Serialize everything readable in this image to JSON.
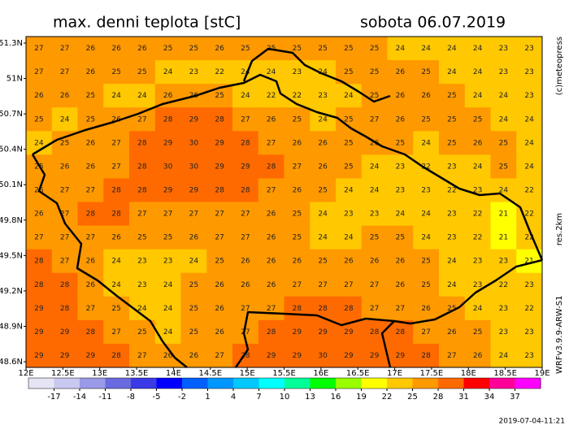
{
  "header": {
    "title": "max. denni teplota [stC]",
    "date": "sobota 06.07.2019"
  },
  "map": {
    "lat_labels": [
      "51.3N",
      "51N",
      "50.7N",
      "50.4N",
      "50.1N",
      "49.8N",
      "49.5N",
      "49.2N",
      "48.9N",
      "48.6N"
    ],
    "lon_labels": [
      "12E",
      "12.5E",
      "13E",
      "13.5E",
      "14E",
      "14.5E",
      "15E",
      "15.5E",
      "16E",
      "16.5E",
      "17E",
      "17.5E",
      "18E",
      "18.5E",
      "19E"
    ],
    "grid": [
      [
        27,
        27,
        26,
        26,
        26,
        25,
        25,
        26,
        25,
        25,
        25,
        25,
        25,
        25,
        24,
        24,
        24,
        24,
        23,
        23
      ],
      [
        27,
        27,
        26,
        25,
        25,
        24,
        23,
        22,
        24,
        24,
        23,
        24,
        25,
        25,
        26,
        25,
        24,
        24,
        23,
        23
      ],
      [
        26,
        26,
        25,
        24,
        24,
        26,
        26,
        25,
        24,
        22,
        22,
        23,
        24,
        25,
        26,
        26,
        25,
        24,
        24,
        23
      ],
      [
        25,
        24,
        25,
        26,
        27,
        28,
        29,
        28,
        27,
        26,
        25,
        24,
        25,
        27,
        26,
        25,
        25,
        25,
        24,
        24
      ],
      [
        24,
        25,
        26,
        27,
        28,
        29,
        30,
        29,
        28,
        27,
        26,
        26,
        25,
        26,
        25,
        24,
        25,
        26,
        25,
        24
      ],
      [
        25,
        26,
        26,
        27,
        28,
        30,
        30,
        29,
        29,
        28,
        27,
        26,
        25,
        24,
        23,
        22,
        23,
        24,
        25,
        24
      ],
      [
        26,
        27,
        27,
        28,
        28,
        29,
        29,
        28,
        28,
        27,
        26,
        25,
        24,
        24,
        23,
        23,
        22,
        23,
        24,
        22
      ],
      [
        26,
        27,
        28,
        28,
        27,
        27,
        27,
        27,
        27,
        26,
        25,
        24,
        23,
        23,
        24,
        24,
        23,
        22,
        21,
        22
      ],
      [
        27,
        27,
        27,
        26,
        25,
        25,
        26,
        27,
        27,
        26,
        25,
        24,
        24,
        25,
        25,
        24,
        23,
        22,
        21,
        22
      ],
      [
        28,
        27,
        26,
        24,
        23,
        23,
        24,
        25,
        26,
        26,
        26,
        25,
        26,
        26,
        26,
        25,
        24,
        23,
        23,
        21
      ],
      [
        28,
        28,
        26,
        24,
        23,
        24,
        25,
        26,
        26,
        26,
        27,
        27,
        27,
        27,
        26,
        25,
        24,
        23,
        22,
        23
      ],
      [
        29,
        28,
        27,
        25,
        24,
        24,
        25,
        26,
        27,
        27,
        28,
        28,
        28,
        27,
        27,
        26,
        25,
        24,
        23,
        22
      ],
      [
        29,
        29,
        28,
        27,
        25,
        24,
        25,
        26,
        27,
        28,
        29,
        29,
        29,
        28,
        28,
        27,
        26,
        25,
        23,
        23
      ],
      [
        29,
        29,
        29,
        28,
        27,
        26,
        26,
        27,
        28,
        29,
        29,
        30,
        29,
        29,
        29,
        28,
        27,
        26,
        24,
        23
      ]
    ]
  },
  "colorbar": {
    "ticks": [
      -17,
      -14,
      -11,
      -8,
      -5,
      -2,
      1,
      4,
      7,
      10,
      13,
      16,
      19,
      22,
      25,
      28,
      31,
      34,
      37
    ],
    "colors": [
      "#e4e4f4",
      "#c8c8f0",
      "#9a9ae8",
      "#6a6ae0",
      "#3a3ae6",
      "#0000ff",
      "#0060ff",
      "#0096ff",
      "#00c8ff",
      "#00ffff",
      "#00ff99",
      "#00ff00",
      "#99ff00",
      "#ffff00",
      "#ffc800",
      "#ff9900",
      "#ff6a00",
      "#ff0000",
      "#ff0099",
      "#ff00ff"
    ]
  },
  "credits": {
    "copyright": "(c)meteopress",
    "resolution": "res.2km",
    "model": "WRFv3.9.9-ARW-S1",
    "timestamp": "2019-07-04-11:21"
  }
}
